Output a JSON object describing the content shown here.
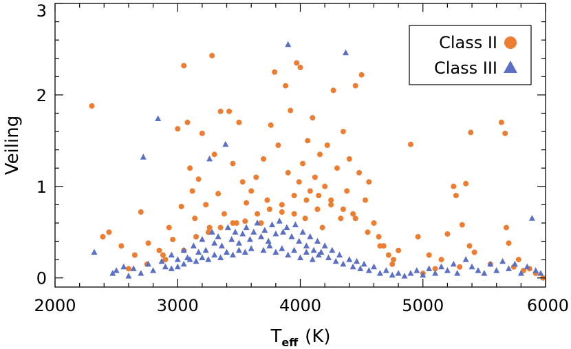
{
  "chart_data": {
    "type": "scatter",
    "title": "",
    "xlabel": "T",
    "xlabel_subscript": "eff",
    "xlabel_unit": "(K)",
    "ylabel": "Veiling",
    "xlim": [
      2000,
      6000
    ],
    "ylim": [
      -0.1,
      3.0
    ],
    "x_ticks": [
      2000,
      3000,
      4000,
      5000,
      6000
    ],
    "x_tick_labels": [
      "2000",
      "3000",
      "4000",
      "5000",
      "6000"
    ],
    "y_ticks": [
      0,
      1,
      2,
      3
    ],
    "y_tick_labels": [
      "0",
      "1",
      "2",
      "3"
    ],
    "x_minor_step": 200,
    "y_minor_step": 0.2,
    "grid": false,
    "legend_position": "top-right",
    "legend": [
      {
        "label": "Class II",
        "marker": "circle",
        "color": "#ED7D31"
      },
      {
        "label": "Class III",
        "marker": "triangle",
        "color": "#5B6FC4"
      }
    ],
    "series": [
      {
        "name": "Class II",
        "marker": "circle",
        "color": "#ED7D31",
        "points": [
          [
            2300,
            1.88
          ],
          [
            2390,
            0.45
          ],
          [
            2440,
            0.5
          ],
          [
            2540,
            0.35
          ],
          [
            2650,
            0.25
          ],
          [
            2700,
            0.72
          ],
          [
            2760,
            0.38
          ],
          [
            2850,
            0.3
          ],
          [
            2880,
            0.25
          ],
          [
            2930,
            0.55
          ],
          [
            2960,
            0.42
          ],
          [
            3000,
            1.63
          ],
          [
            3030,
            0.78
          ],
          [
            3050,
            2.32
          ],
          [
            3080,
            1.7
          ],
          [
            3100,
            1.2
          ],
          [
            3120,
            0.95
          ],
          [
            3140,
            0.65
          ],
          [
            3170,
            1.08
          ],
          [
            3200,
            1.58
          ],
          [
            3230,
            0.8
          ],
          [
            3260,
            0.55
          ],
          [
            3280,
            2.43
          ],
          [
            3300,
            1.35
          ],
          [
            3330,
            0.92
          ],
          [
            3350,
            1.82
          ],
          [
            3380,
            0.7
          ],
          [
            3420,
            1.82
          ],
          [
            3450,
            1.25
          ],
          [
            3480,
            0.6
          ],
          [
            3500,
            1.7
          ],
          [
            3530,
            1.05
          ],
          [
            3560,
            0.82
          ],
          [
            3600,
            0.95
          ],
          [
            3640,
            1.1
          ],
          [
            3680,
            0.6
          ],
          [
            3700,
            1.3
          ],
          [
            3730,
            0.85
          ],
          [
            3760,
            1.67
          ],
          [
            3790,
            2.25
          ],
          [
            3820,
            1.45
          ],
          [
            3850,
            0.72
          ],
          [
            3880,
            2.1
          ],
          [
            3900,
            1.15
          ],
          [
            3920,
            1.83
          ],
          [
            3950,
            0.9
          ],
          [
            3970,
            2.35
          ],
          [
            3990,
            1.05
          ],
          [
            4000,
            2.3
          ],
          [
            4020,
            1.25
          ],
          [
            4040,
            0.65
          ],
          [
            4060,
            1.5
          ],
          [
            4080,
            0.95
          ],
          [
            4100,
            1.75
          ],
          [
            4120,
            1.1
          ],
          [
            4140,
            0.75
          ],
          [
            4160,
            1.35
          ],
          [
            4180,
            0.55
          ],
          [
            4200,
            1.0
          ],
          [
            4220,
            1.45
          ],
          [
            4250,
            0.85
          ],
          [
            4270,
            2.05
          ],
          [
            4300,
            1.2
          ],
          [
            4330,
            0.65
          ],
          [
            4350,
            1.6
          ],
          [
            4380,
            0.95
          ],
          [
            4400,
            1.3
          ],
          [
            4430,
            0.7
          ],
          [
            4450,
            2.1
          ],
          [
            4480,
            1.15
          ],
          [
            4500,
            2.22
          ],
          [
            4530,
            0.85
          ],
          [
            4560,
            1.05
          ],
          [
            4600,
            0.6
          ],
          [
            4640,
            0.45
          ],
          [
            4680,
            0.35
          ],
          [
            4720,
            0.25
          ],
          [
            4760,
            0.2
          ],
          [
            4800,
            0.3
          ],
          [
            4900,
            1.46
          ],
          [
            4960,
            0.45
          ],
          [
            5050,
            0.25
          ],
          [
            5150,
            0.2
          ],
          [
            5200,
            0.48
          ],
          [
            5250,
            1.0
          ],
          [
            5270,
            0.9
          ],
          [
            5320,
            0.58
          ],
          [
            5350,
            1.03
          ],
          [
            5380,
            0.35
          ],
          [
            5390,
            1.59
          ],
          [
            5420,
            0.28
          ],
          [
            5550,
            0.15
          ],
          [
            5640,
            1.7
          ],
          [
            5670,
            1.58
          ],
          [
            5680,
            0.55
          ],
          [
            5700,
            0.38
          ],
          [
            5740,
            0.12
          ],
          [
            5780,
            0.2
          ],
          [
            5820,
            0.08
          ],
          [
            5870,
            0.1
          ],
          [
            5920,
            0.05
          ],
          [
            5980,
            0.0
          ],
          [
            2600,
            0.1
          ],
          [
            2750,
            0.15
          ],
          [
            2900,
            0.2
          ],
          [
            3050,
            0.3
          ],
          [
            3150,
            0.45
          ],
          [
            3250,
            0.5
          ],
          [
            3350,
            0.55
          ],
          [
            3450,
            0.6
          ],
          [
            3550,
            0.62
          ],
          [
            3650,
            0.7
          ],
          [
            3750,
            0.75
          ],
          [
            3850,
            0.8
          ],
          [
            3950,
            0.7
          ],
          [
            4050,
            0.85
          ],
          [
            4150,
            0.9
          ],
          [
            4250,
            0.8
          ],
          [
            4350,
            0.75
          ],
          [
            4450,
            0.65
          ],
          [
            4550,
            0.5
          ],
          [
            4650,
            0.35
          ],
          [
            4750,
            0.15
          ],
          [
            5000,
            0.05
          ],
          [
            5100,
            0.1
          ],
          [
            5300,
            0.12
          ]
        ]
      },
      {
        "name": "Class III",
        "marker": "triangle",
        "color": "#5B6FC4",
        "points": [
          [
            2320,
            0.28
          ],
          [
            2470,
            0.05
          ],
          [
            2500,
            0.08
          ],
          [
            2560,
            0.12
          ],
          [
            2600,
            0.02
          ],
          [
            2640,
            0.1
          ],
          [
            2700,
            0.05
          ],
          [
            2720,
            1.32
          ],
          [
            2760,
            0.15
          ],
          [
            2800,
            0.08
          ],
          [
            2840,
            1.74
          ],
          [
            2870,
            0.18
          ],
          [
            2900,
            0.12
          ],
          [
            2950,
            0.25
          ],
          [
            3000,
            0.2
          ],
          [
            3050,
            0.3
          ],
          [
            3080,
            0.22
          ],
          [
            3130,
            0.35
          ],
          [
            3170,
            0.28
          ],
          [
            3200,
            0.42
          ],
          [
            3230,
            0.3
          ],
          [
            3260,
            1.3
          ],
          [
            3280,
            0.5
          ],
          [
            3300,
            0.38
          ],
          [
            3330,
            0.45
          ],
          [
            3360,
            0.35
          ],
          [
            3390,
            1.46
          ],
          [
            3410,
            0.55
          ],
          [
            3440,
            0.42
          ],
          [
            3470,
            0.5
          ],
          [
            3500,
            0.38
          ],
          [
            3530,
            0.48
          ],
          [
            3560,
            0.55
          ],
          [
            3590,
            0.42
          ],
          [
            3620,
            0.5
          ],
          [
            3650,
            0.6
          ],
          [
            3680,
            0.45
          ],
          [
            3710,
            0.52
          ],
          [
            3740,
            0.4
          ],
          [
            3770,
            0.58
          ],
          [
            3800,
            0.48
          ],
          [
            3830,
            0.62
          ],
          [
            3860,
            0.5
          ],
          [
            3890,
            0.55
          ],
          [
            3900,
            2.55
          ],
          [
            3930,
            0.45
          ],
          [
            3960,
            0.58
          ],
          [
            3990,
            0.4
          ],
          [
            4020,
            0.5
          ],
          [
            4050,
            0.35
          ],
          [
            4080,
            0.45
          ],
          [
            4110,
            0.3
          ],
          [
            4140,
            0.4
          ],
          [
            4170,
            0.28
          ],
          [
            4200,
            0.35
          ],
          [
            4230,
            0.22
          ],
          [
            4260,
            0.3
          ],
          [
            4290,
            0.18
          ],
          [
            4320,
            0.25
          ],
          [
            4350,
            0.15
          ],
          [
            4370,
            2.46
          ],
          [
            4400,
            0.2
          ],
          [
            4430,
            0.12
          ],
          [
            4460,
            0.18
          ],
          [
            4490,
            0.1
          ],
          [
            4520,
            0.15
          ],
          [
            4560,
            0.08
          ],
          [
            4600,
            0.12
          ],
          [
            4650,
            0.05
          ],
          [
            4700,
            0.08
          ],
          [
            4750,
            0.03
          ],
          [
            4800,
            0.05
          ],
          [
            4850,
            0.02
          ],
          [
            4900,
            0.05
          ],
          [
            4950,
            0.08
          ],
          [
            5000,
            0.03
          ],
          [
            5050,
            0.1
          ],
          [
            5100,
            0.05
          ],
          [
            5150,
            0.12
          ],
          [
            5200,
            0.08
          ],
          [
            5250,
            0.15
          ],
          [
            5280,
            0.05
          ],
          [
            5350,
            0.2
          ],
          [
            5400,
            0.12
          ],
          [
            5450,
            0.08
          ],
          [
            5500,
            0.05
          ],
          [
            5550,
            0.15
          ],
          [
            5600,
            0.08
          ],
          [
            5650,
            0.18
          ],
          [
            5700,
            0.1
          ],
          [
            5750,
            0.15
          ],
          [
            5800,
            0.05
          ],
          [
            5850,
            0.12
          ],
          [
            5890,
            0.65
          ],
          [
            5920,
            0.08
          ],
          [
            5960,
            0.05
          ],
          [
            3700,
            0.3
          ],
          [
            3750,
            0.35
          ],
          [
            3800,
            0.28
          ],
          [
            3850,
            0.32
          ],
          [
            3900,
            0.25
          ],
          [
            3950,
            0.3
          ],
          [
            4000,
            0.22
          ],
          [
            4050,
            0.28
          ],
          [
            4100,
            0.2
          ],
          [
            4150,
            0.25
          ],
          [
            3600,
            0.32
          ],
          [
            3550,
            0.28
          ],
          [
            3500,
            0.3
          ],
          [
            3450,
            0.25
          ],
          [
            3400,
            0.28
          ],
          [
            3350,
            0.22
          ],
          [
            3300,
            0.25
          ],
          [
            3250,
            0.2
          ],
          [
            3200,
            0.22
          ],
          [
            3150,
            0.18
          ],
          [
            3100,
            0.2
          ],
          [
            3050,
            0.15
          ],
          [
            3000,
            0.12
          ],
          [
            2950,
            0.1
          ]
        ]
      }
    ]
  }
}
